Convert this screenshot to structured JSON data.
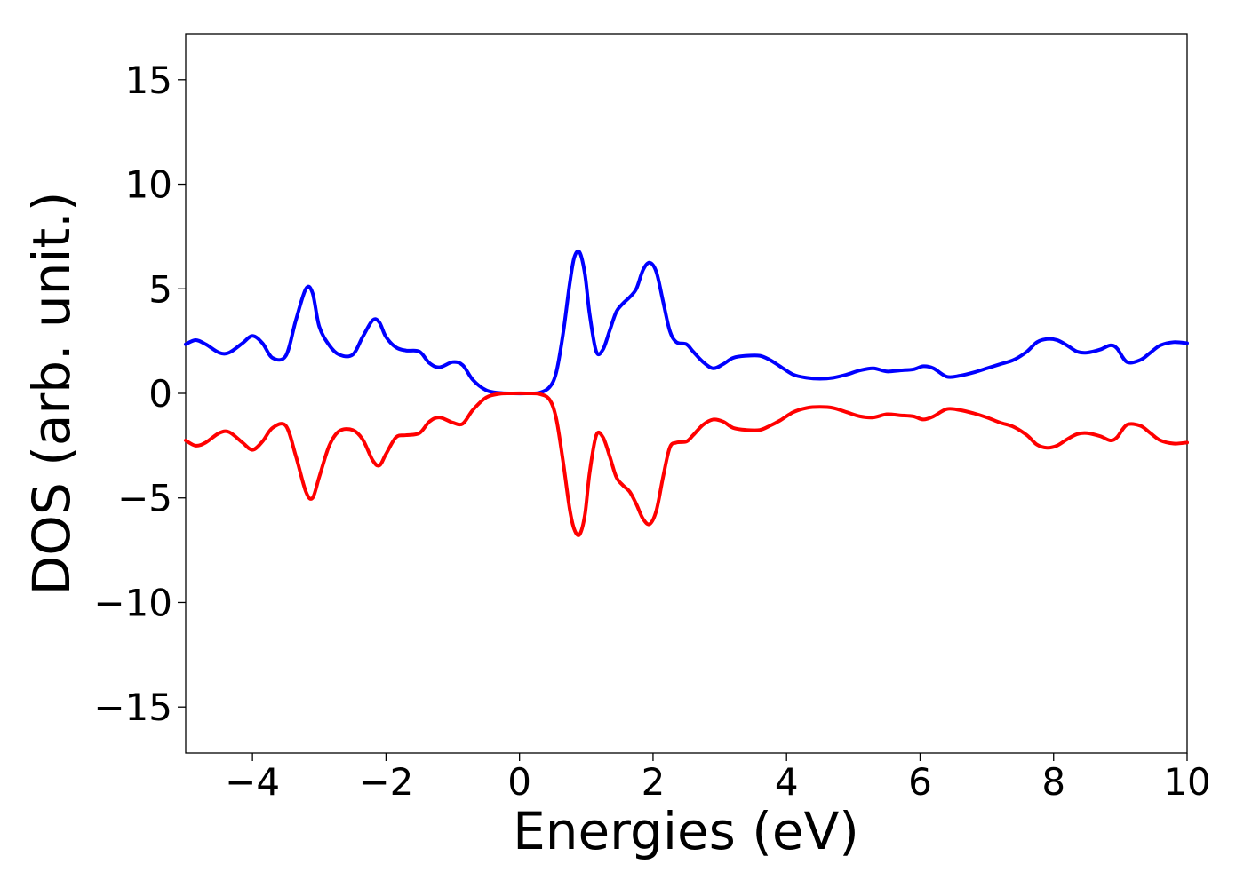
{
  "chart_data": {
    "type": "line",
    "xlabel": "Energies (eV)",
    "ylabel": "DOS (arb. unit.)",
    "xlim": [
      -5,
      10
    ],
    "ylim": [
      -17.2,
      17.2
    ],
    "xticks": [
      -4,
      -2,
      0,
      2,
      4,
      6,
      8,
      10
    ],
    "xtick_labels": [
      "−4",
      "−2",
      "0",
      "2",
      "4",
      "6",
      "8",
      "10"
    ],
    "yticks": [
      15,
      10,
      5,
      0,
      -5,
      -10,
      -15
    ],
    "ytick_labels": [
      "15",
      "10",
      "5",
      "0",
      "−5",
      "−10",
      "−15"
    ],
    "grid": false,
    "legend": "none",
    "series": [
      {
        "color": "#0000ff",
        "x": [
          -5.0,
          -4.85,
          -4.7,
          -4.5,
          -4.35,
          -4.15,
          -4.0,
          -3.85,
          -3.7,
          -3.5,
          -3.35,
          -3.2,
          -3.1,
          -3.0,
          -2.85,
          -2.7,
          -2.5,
          -2.35,
          -2.2,
          -2.1,
          -2.0,
          -1.85,
          -1.7,
          -1.5,
          -1.35,
          -1.2,
          -1.0,
          -0.85,
          -0.7,
          -0.5,
          -0.3,
          -0.1,
          0.1,
          0.3,
          0.45,
          0.55,
          0.65,
          0.75,
          0.82,
          0.9,
          0.98,
          1.05,
          1.15,
          1.25,
          1.35,
          1.45,
          1.55,
          1.65,
          1.75,
          1.85,
          1.95,
          2.05,
          2.15,
          2.25,
          2.35,
          2.5,
          2.6,
          2.75,
          2.9,
          3.05,
          3.2,
          3.4,
          3.6,
          3.75,
          3.9,
          4.1,
          4.3,
          4.5,
          4.7,
          4.9,
          5.1,
          5.3,
          5.5,
          5.7,
          5.9,
          6.05,
          6.2,
          6.4,
          6.6,
          6.8,
          7.0,
          7.2,
          7.4,
          7.6,
          7.75,
          7.9,
          8.05,
          8.2,
          8.35,
          8.5,
          8.7,
          8.85,
          8.95,
          9.1,
          9.3,
          9.45,
          9.6,
          9.8,
          10.0
        ],
        "y": [
          2.35,
          2.55,
          2.35,
          1.95,
          1.95,
          2.4,
          2.75,
          2.4,
          1.7,
          1.8,
          3.5,
          5.0,
          4.8,
          3.2,
          2.3,
          1.85,
          1.85,
          2.7,
          3.5,
          3.4,
          2.7,
          2.2,
          2.05,
          2.0,
          1.45,
          1.25,
          1.5,
          1.35,
          0.65,
          0.15,
          0.02,
          0.0,
          0.0,
          0.03,
          0.3,
          1.0,
          2.8,
          5.2,
          6.5,
          6.75,
          5.7,
          3.8,
          2.0,
          2.1,
          3.0,
          3.9,
          4.3,
          4.6,
          5.0,
          5.9,
          6.25,
          5.8,
          4.4,
          3.0,
          2.45,
          2.35,
          2.0,
          1.5,
          1.2,
          1.4,
          1.7,
          1.8,
          1.8,
          1.6,
          1.3,
          0.9,
          0.75,
          0.7,
          0.75,
          0.9,
          1.1,
          1.2,
          1.05,
          1.1,
          1.15,
          1.3,
          1.2,
          0.8,
          0.85,
          1.0,
          1.2,
          1.4,
          1.6,
          2.0,
          2.45,
          2.6,
          2.55,
          2.3,
          2.0,
          1.95,
          2.1,
          2.3,
          2.15,
          1.5,
          1.6,
          1.95,
          2.3,
          2.45,
          2.4
        ]
      },
      {
        "color": "#ff0000",
        "x": [
          -5.0,
          -4.85,
          -4.7,
          -4.5,
          -4.35,
          -4.15,
          -4.0,
          -3.85,
          -3.7,
          -3.5,
          -3.35,
          -3.2,
          -3.1,
          -3.0,
          -2.85,
          -2.7,
          -2.5,
          -2.35,
          -2.2,
          -2.1,
          -2.0,
          -1.85,
          -1.7,
          -1.5,
          -1.35,
          -1.2,
          -1.0,
          -0.85,
          -0.7,
          -0.5,
          -0.3,
          -0.1,
          0.1,
          0.3,
          0.45,
          0.55,
          0.65,
          0.75,
          0.82,
          0.9,
          0.98,
          1.05,
          1.15,
          1.25,
          1.35,
          1.45,
          1.55,
          1.65,
          1.75,
          1.85,
          1.95,
          2.05,
          2.15,
          2.25,
          2.35,
          2.5,
          2.6,
          2.75,
          2.9,
          3.05,
          3.2,
          3.4,
          3.6,
          3.75,
          3.9,
          4.1,
          4.3,
          4.5,
          4.7,
          4.9,
          5.1,
          5.3,
          5.5,
          5.7,
          5.9,
          6.05,
          6.2,
          6.4,
          6.6,
          6.8,
          7.0,
          7.2,
          7.4,
          7.6,
          7.75,
          7.9,
          8.05,
          8.2,
          8.35,
          8.5,
          8.7,
          8.85,
          8.95,
          9.1,
          9.3,
          9.45,
          9.6,
          9.8,
          10.0
        ],
        "y": [
          -2.25,
          -2.5,
          -2.35,
          -1.9,
          -1.85,
          -2.35,
          -2.7,
          -2.3,
          -1.65,
          -1.55,
          -3.0,
          -4.7,
          -5.0,
          -4.0,
          -2.5,
          -1.8,
          -1.75,
          -2.2,
          -3.2,
          -3.45,
          -2.9,
          -2.1,
          -2.0,
          -1.9,
          -1.35,
          -1.15,
          -1.4,
          -1.45,
          -0.8,
          -0.2,
          -0.02,
          0.0,
          0.0,
          -0.03,
          -0.3,
          -1.2,
          -3.2,
          -5.5,
          -6.5,
          -6.75,
          -5.8,
          -3.8,
          -2.0,
          -2.1,
          -3.0,
          -4.0,
          -4.4,
          -4.7,
          -5.3,
          -6.0,
          -6.25,
          -5.6,
          -4.0,
          -2.6,
          -2.35,
          -2.3,
          -2.0,
          -1.5,
          -1.25,
          -1.35,
          -1.65,
          -1.75,
          -1.75,
          -1.55,
          -1.3,
          -0.9,
          -0.7,
          -0.65,
          -0.7,
          -0.9,
          -1.1,
          -1.15,
          -1.0,
          -1.05,
          -1.1,
          -1.25,
          -1.1,
          -0.75,
          -0.8,
          -0.95,
          -1.15,
          -1.4,
          -1.6,
          -2.0,
          -2.45,
          -2.6,
          -2.5,
          -2.2,
          -1.95,
          -1.9,
          -2.05,
          -2.25,
          -2.1,
          -1.5,
          -1.55,
          -1.9,
          -2.25,
          -2.4,
          -2.35
        ]
      }
    ]
  }
}
